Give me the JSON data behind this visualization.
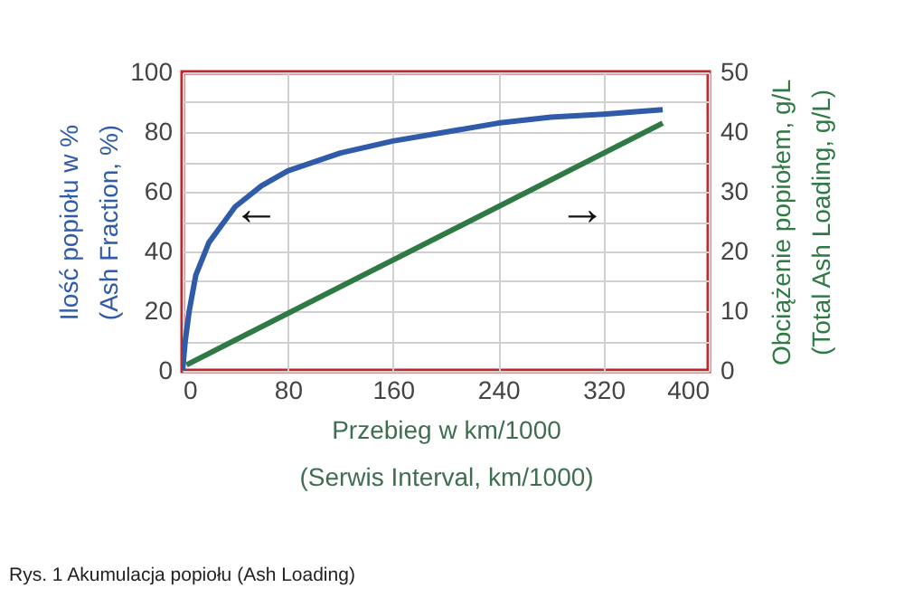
{
  "chart_data": {
    "type": "line",
    "xlabel": "Przebieg w km/1000\n(Serwis Interval, km/1000)",
    "ylabel": "Ilość popiołu w %\n(Ash Fraction, %)",
    "y2label": "Obciążenie popiołem, g/L\n(Total Ash Loading, g/L)",
    "series": [
      {
        "color": "#2f5ba8",
        "x": [
          0,
          2,
          5,
          10,
          20,
          40,
          60,
          80,
          120,
          160,
          200,
          240,
          280,
          320,
          365
        ],
        "values": [
          0,
          10,
          20,
          32,
          43,
          55,
          62,
          67,
          73,
          77,
          80,
          83,
          85,
          86,
          87.5
        ]
      },
      {
        "color": "#2f7a44",
        "axis": "y2",
        "x": [
          3,
          365
        ],
        "values": [
          1,
          41.5
        ]
      }
    ],
    "xlim": [
      0,
      400
    ],
    "xticks": [
      0,
      80,
      160,
      240,
      320,
      400
    ],
    "ylim": [
      0,
      100
    ],
    "yticks": [
      0,
      {
        "value": 10,
        "label": null
      },
      20,
      {
        "value": 30,
        "label": null
      },
      40,
      {
        "value": 50,
        "label": null
      },
      60,
      {
        "value": 70,
        "label": null
      },
      80,
      {
        "value": 90,
        "label": null
      },
      100
    ],
    "y2lim": [
      0,
      50
    ],
    "y2ticks": [
      0,
      10,
      20,
      30,
      40,
      50
    ],
    "grid": true,
    "marker": "none",
    "line_style": "solid",
    "annotations": [
      "←",
      "→",
      "Rys. 1  Akumulacja popiołu (Ash Loading)"
    ]
  }
}
